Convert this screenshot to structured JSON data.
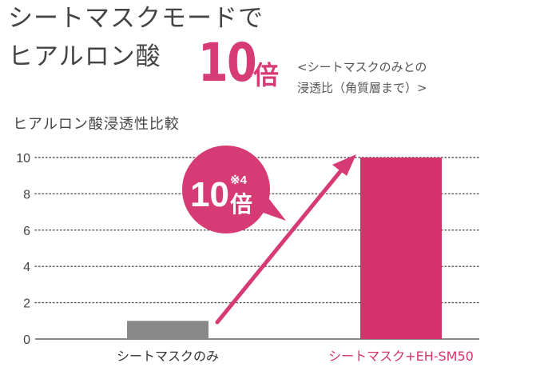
{
  "headline": {
    "line1": "シートマスクモードで",
    "line2": "ヒアルロン酸",
    "big_number": "10",
    "big_unit": "倍",
    "note_line1": "<シートマスクのみとの",
    "note_line2": "浸透比（角質層まで）>"
  },
  "callout": {
    "number": "10",
    "footnote": "※4",
    "unit": "倍"
  },
  "colors": {
    "accent": "#d63b75",
    "bar_gray": "#888888",
    "bar_pink": "#d6336c",
    "label_pink": "#d6336c"
  },
  "chart_data": {
    "type": "bar",
    "title": "ヒアルロン酸浸透性比較",
    "categories": [
      "シートマスクのみ",
      "シートマスク+EH-SM50"
    ],
    "values": [
      1,
      10
    ],
    "ylim": [
      0,
      10
    ],
    "yticks": [
      "0",
      "2",
      "4",
      "6",
      "8",
      "10"
    ],
    "grid": true,
    "grid_style": "dotted"
  }
}
